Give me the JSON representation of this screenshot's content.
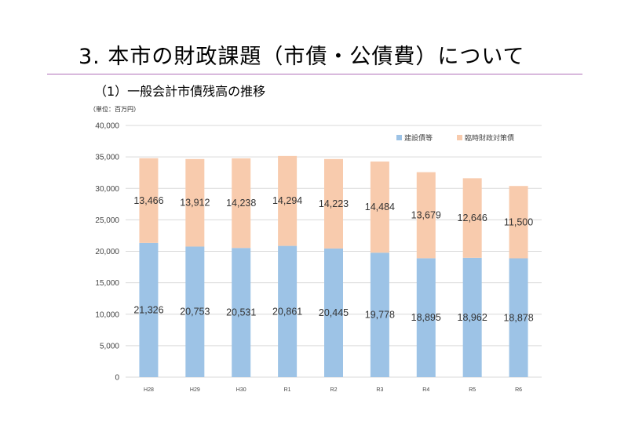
{
  "page": {
    "title": "3. 本市の財政課題（市債・公債費）について",
    "subtitle": "（1）一般会計市債残高の推移",
    "unit": "（単位：百万円）"
  },
  "colors": {
    "title_rule": "#b070b8",
    "construction": "#9dc3e6",
    "special": "#f8cbad",
    "gridline": "#d9d9d9"
  },
  "chart_data": {
    "type": "bar",
    "stacked": true,
    "categories": [
      "H28",
      "H29",
      "H30",
      "R1",
      "R2",
      "R3",
      "R4",
      "R5",
      "R6"
    ],
    "series": [
      {
        "name": "建設債等",
        "values": [
          21326,
          20753,
          20531,
          20861,
          20445,
          19778,
          18895,
          18962,
          18878
        ],
        "labels": [
          "21,326",
          "20,753",
          "20,531",
          "20,861",
          "20,445",
          "19,778",
          "18,895",
          "18,962",
          "18,878"
        ]
      },
      {
        "name": "臨時財政対策債",
        "values": [
          13466,
          13912,
          14238,
          14294,
          14223,
          14484,
          13679,
          12646,
          11500
        ],
        "labels": [
          "13,466",
          "13,912",
          "14,238",
          "14,294",
          "14,223",
          "14,484",
          "13,679",
          "12,646",
          "11,500"
        ]
      }
    ],
    "ylim": [
      0,
      40000
    ],
    "yticks": [
      0,
      5000,
      10000,
      15000,
      20000,
      25000,
      30000,
      35000,
      40000
    ],
    "ytick_labels": [
      "0",
      "5,000",
      "10,000",
      "15,000",
      "20,000",
      "25,000",
      "30,000",
      "35,000",
      "40,000"
    ],
    "grid": true,
    "legend_position": "top-right"
  }
}
